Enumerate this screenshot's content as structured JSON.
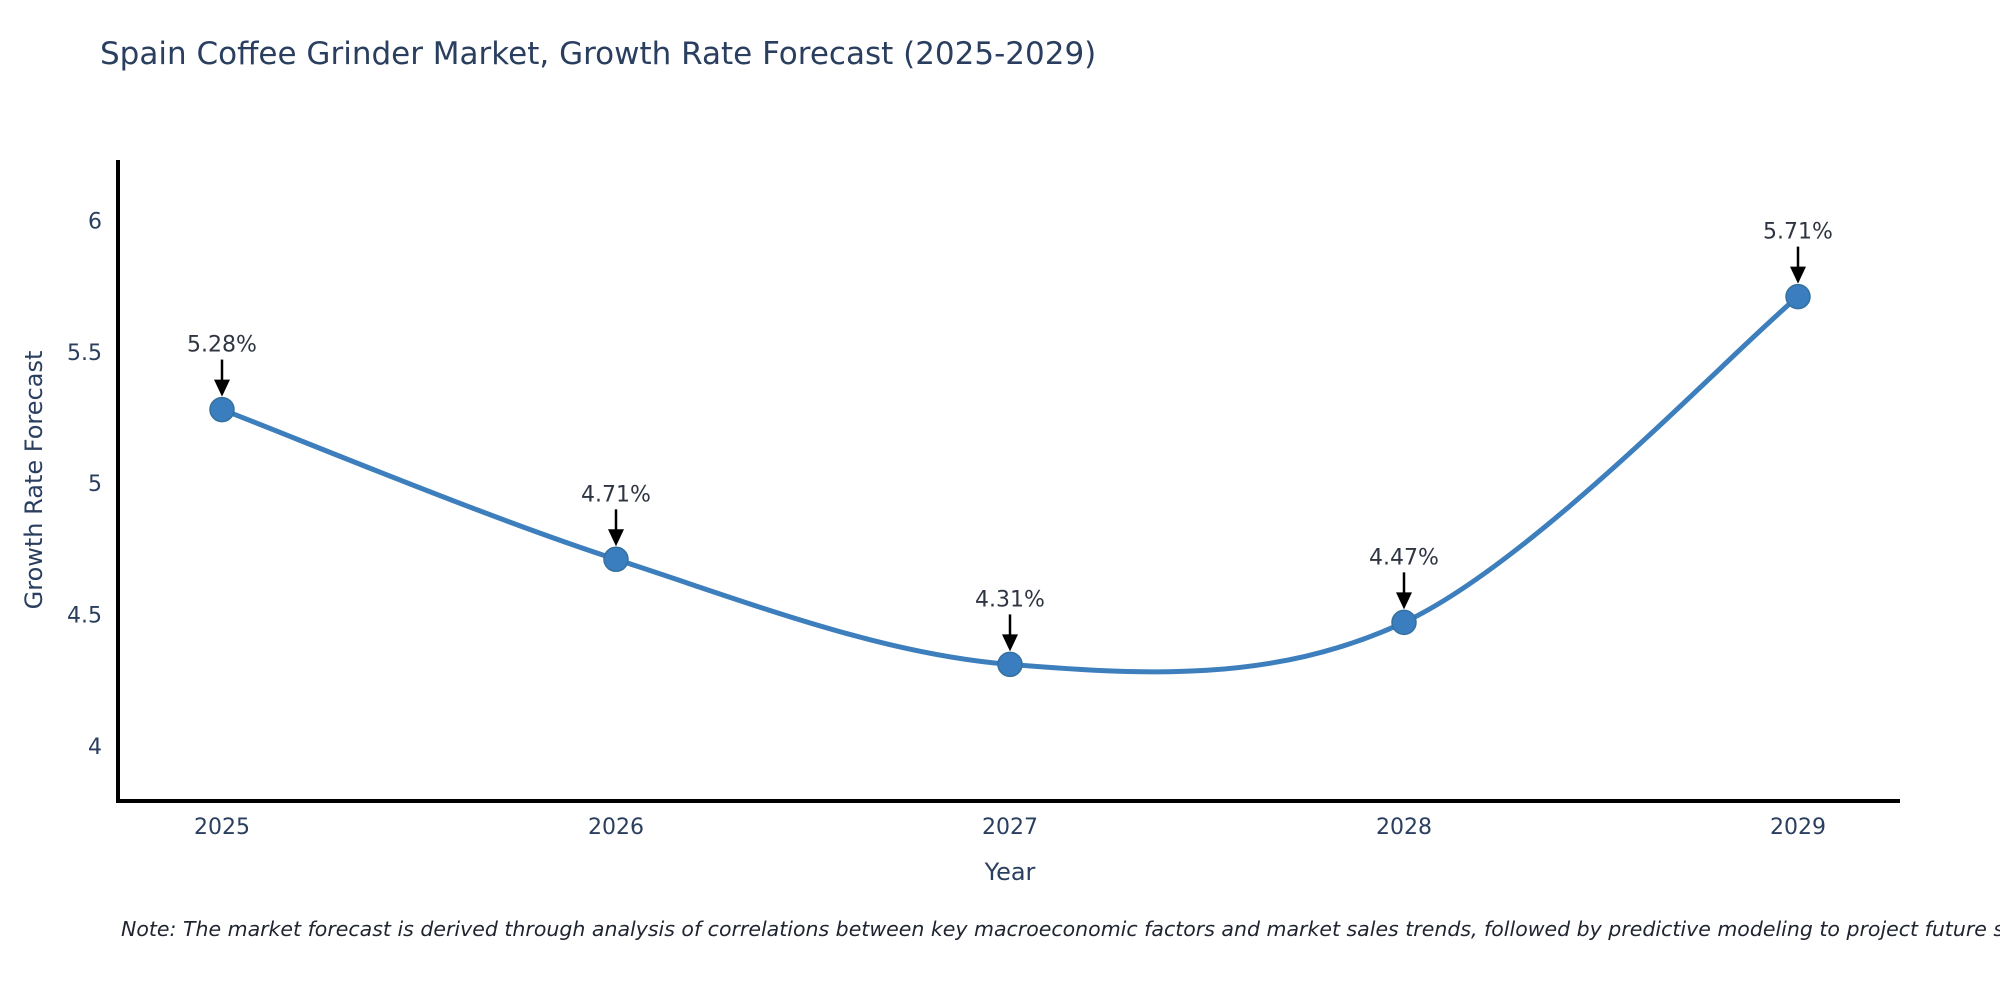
{
  "title": "Spain Coffee Grinder Market, Growth Rate Forecast (2025-2029)",
  "note": "Note: The market forecast is derived through analysis of correlations between key macroeconomic factors and market sales trends, followed by predictive modeling to project future sales",
  "chart_data": {
    "type": "line",
    "title": "Spain Coffee Grinder Market, Growth Rate Forecast (2025-2029)",
    "x": [
      "2025",
      "2026",
      "2027",
      "2028",
      "2029"
    ],
    "series": [
      {
        "name": "Growth Rate Forecast",
        "values": [
          5.28,
          4.71,
          4.31,
          4.47,
          5.71
        ]
      }
    ],
    "annotations": [
      "5.28%",
      "4.71%",
      "4.31%",
      "4.47%",
      "5.71%"
    ],
    "xlabel": "Year",
    "ylabel": "Growth Rate Forecast",
    "ylim": [
      3.79,
      6.23
    ],
    "yticks": [
      4,
      4.5,
      5,
      5.5,
      6
    ],
    "line_shape": "spline",
    "grid": false,
    "legend_position": "none",
    "colors": {
      "line": "#3d7ebd",
      "marker": "#3a7ebf",
      "marker_edge": "#35719f",
      "axis_line": "#000000",
      "tick_text": "#2a3f5f",
      "annotation_text": "#2f3542",
      "arrow": "#000000",
      "background": "#ffffff"
    }
  }
}
